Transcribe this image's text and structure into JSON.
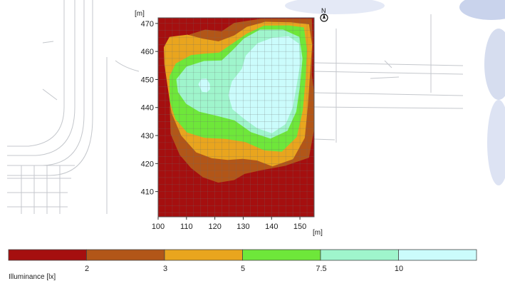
{
  "chart_data": {
    "type": "heatmap",
    "title": "",
    "x_unit": "[m]",
    "y_unit": "[m]",
    "xlim": [
      100,
      155
    ],
    "ylim": [
      401,
      472
    ],
    "x_ticks": [
      100,
      110,
      120,
      130,
      140,
      150
    ],
    "y_ticks": [
      410,
      420,
      430,
      440,
      450,
      460,
      470
    ],
    "north_label": "N",
    "legend": {
      "title": "Illuminance [lx]",
      "thresholds": [
        "2",
        "3",
        "5",
        "7.5",
        "10"
      ],
      "bands": [
        {
          "range": "< 2",
          "color": "#a50f0f"
        },
        {
          "range": "2 - 3",
          "color": "#b25618"
        },
        {
          "range": "3 - 5",
          "color": "#e9a51e"
        },
        {
          "range": "5 - 7.5",
          "color": "#6ee73a"
        },
        {
          "range": "7.5 - 10",
          "color": "#9ff5cc"
        },
        {
          "range": "> 10",
          "color": "#cbfcfc"
        }
      ]
    },
    "contours": [
      {
        "level": 2,
        "color": "#b25618",
        "points": [
          [
            107.9,
            455.7
          ],
          [
            108.6,
            461.2
          ],
          [
            111.1,
            466.1
          ],
          [
            116.6,
            467.8
          ],
          [
            122.4,
            467.2
          ],
          [
            126.8,
            470.2
          ],
          [
            136.2,
            471.7
          ],
          [
            147.2,
            471.7
          ],
          [
            154.2,
            471.7
          ],
          [
            154.5,
            462.5
          ],
          [
            154.2,
            451.7
          ],
          [
            155,
            445.3
          ],
          [
            155,
            432.2
          ],
          [
            153.2,
            422.1
          ],
          [
            144.8,
            419.2
          ],
          [
            136.3,
            417.6
          ],
          [
            130.5,
            416.3
          ],
          [
            126.8,
            414.1
          ],
          [
            121.2,
            413.2
          ],
          [
            115.8,
            415.1
          ],
          [
            111.6,
            418.4
          ],
          [
            107.6,
            423.1
          ],
          [
            104.4,
            430.6
          ],
          [
            104.1,
            440.1
          ],
          [
            104.9,
            449.4
          ]
        ]
      },
      {
        "level": 3,
        "color": "#e9a51e",
        "points": [
          [
            102,
            461.5
          ],
          [
            104,
            465.2
          ],
          [
            110.4,
            466
          ],
          [
            115.6,
            464.6
          ],
          [
            121.3,
            463.6
          ],
          [
            126.8,
            465.7
          ],
          [
            131.3,
            468.8
          ],
          [
            137.8,
            470.6
          ],
          [
            146.8,
            470.4
          ],
          [
            153.2,
            469.7
          ],
          [
            154.3,
            462.3
          ],
          [
            153.5,
            451.1
          ],
          [
            152.8,
            440.5
          ],
          [
            151.7,
            429.2
          ],
          [
            147.6,
            421.6
          ],
          [
            140.3,
            419
          ],
          [
            134.8,
            421.1
          ],
          [
            129.8,
            421.7
          ],
          [
            124.5,
            421.3
          ],
          [
            118.9,
            421.9
          ],
          [
            113.4,
            424
          ],
          [
            108.1,
            430
          ],
          [
            104.7,
            438.1
          ],
          [
            103.3,
            447.9
          ],
          [
            102.2,
            455.4
          ]
        ]
      },
      {
        "level": 5,
        "color": "#6ee73a",
        "points": [
          [
            104,
            451.1
          ],
          [
            106.2,
            455.7
          ],
          [
            111.6,
            458.7
          ],
          [
            116.3,
            459.2
          ],
          [
            121.5,
            459.6
          ],
          [
            126.6,
            463.1
          ],
          [
            131.2,
            466.3
          ],
          [
            137.3,
            469.2
          ],
          [
            146,
            469.3
          ],
          [
            151.4,
            468.6
          ],
          [
            152.5,
            460.6
          ],
          [
            152,
            450.3
          ],
          [
            151,
            439
          ],
          [
            148.9,
            429.5
          ],
          [
            143.6,
            424.2
          ],
          [
            137.5,
            424.7
          ],
          [
            130.7,
            427.7
          ],
          [
            123.7,
            428.8
          ],
          [
            116.3,
            429.2
          ],
          [
            110.2,
            431.1
          ],
          [
            106.1,
            435.9
          ],
          [
            104.1,
            442.3
          ]
        ]
      },
      {
        "level": 7.5,
        "color": "#9ff5cc",
        "points": [
          [
            106.4,
            450.1
          ],
          [
            110,
            454.6
          ],
          [
            116.2,
            456.6
          ],
          [
            122.4,
            456.8
          ],
          [
            126.2,
            460.4
          ],
          [
            130.2,
            464.6
          ],
          [
            135.9,
            467.8
          ],
          [
            144.1,
            467.8
          ],
          [
            149.8,
            465.2
          ],
          [
            150.9,
            457.5
          ],
          [
            150,
            447.6
          ],
          [
            148.7,
            438.5
          ],
          [
            145.6,
            431.7
          ],
          [
            139.6,
            428.9
          ],
          [
            132.7,
            431.2
          ],
          [
            126.9,
            435.4
          ],
          [
            120.4,
            437.1
          ],
          [
            114.5,
            438.5
          ],
          [
            109.9,
            441.3
          ],
          [
            107,
            445.5
          ]
        ]
      },
      {
        "level": 10,
        "color": "#cbfcfc",
        "points": [
          [
            126,
            449.3
          ],
          [
            129.5,
            453.8
          ],
          [
            130.9,
            458.5
          ],
          [
            135,
            462.9
          ],
          [
            140.3,
            464.9
          ],
          [
            146,
            465.4
          ],
          [
            149.7,
            462.8
          ],
          [
            150.1,
            455.6
          ],
          [
            148.8,
            447.6
          ],
          [
            147.5,
            440.1
          ],
          [
            145,
            434.1
          ],
          [
            140.1,
            430.8
          ],
          [
            134.9,
            432.6
          ],
          [
            130.3,
            436
          ],
          [
            126.2,
            439.4
          ],
          [
            124.8,
            444.4
          ]
        ]
      },
      {
        "level": 10,
        "color": "#cbfcfc",
        "points": [
          [
            114.2,
            448.3
          ],
          [
            115.2,
            450.2
          ],
          [
            117,
            450.3
          ],
          [
            118.2,
            448.5
          ],
          [
            118.3,
            446.5
          ],
          [
            117.2,
            445.4
          ],
          [
            115.5,
            445.6
          ]
        ]
      }
    ]
  }
}
